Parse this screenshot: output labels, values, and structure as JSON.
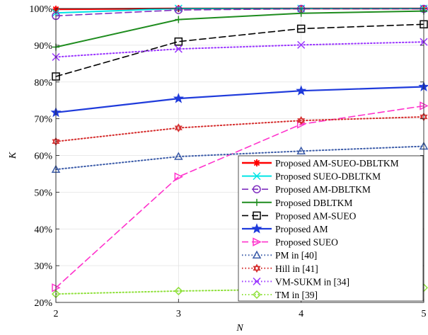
{
  "chart_data": {
    "type": "line",
    "xlabel": "N",
    "ylabel": "K",
    "x": [
      2,
      3,
      4,
      5
    ],
    "xlim": [
      2,
      5
    ],
    "ylim": [
      20,
      100
    ],
    "xticks": [
      "2",
      "3",
      "4",
      "5"
    ],
    "yticks": [
      "20%",
      "30%",
      "40%",
      "50%",
      "60%",
      "70%",
      "80%",
      "90%",
      "100%"
    ],
    "grid": true,
    "legend_position": "lower-right",
    "series": [
      {
        "name": "Proposed AM-SUEO-DBLTKM",
        "values": [
          99.8,
          100,
          100,
          100
        ],
        "color": "#ff0000",
        "line": "solid",
        "marker": "asterisk",
        "width": 2.5
      },
      {
        "name": "Proposed SUEO-DBLTKM",
        "values": [
          98.8,
          100,
          100,
          100
        ],
        "color": "#00e5e5",
        "line": "solid",
        "marker": "x",
        "width": 2
      },
      {
        "name": "Proposed AM-DBLTKM",
        "values": [
          98,
          99.6,
          99.9,
          99.9
        ],
        "color": "#7f2fbf",
        "line": "dashed",
        "marker": "circle",
        "width": 1.6
      },
      {
        "name": "Proposed DBLTKM",
        "values": [
          89.5,
          97,
          98.7,
          99.3
        ],
        "color": "#1e8c1e",
        "line": "solid",
        "marker": "plus",
        "width": 2
      },
      {
        "name": "Proposed AM-SUEO",
        "values": [
          81.5,
          91,
          94.5,
          95.7
        ],
        "color": "#000000",
        "line": "dashed",
        "marker": "square",
        "width": 1.6
      },
      {
        "name": "Proposed AM",
        "values": [
          71.7,
          75.5,
          77.6,
          78.7
        ],
        "color": "#1f3bdb",
        "line": "solid",
        "marker": "star",
        "width": 2.2
      },
      {
        "name": "Proposed SUEO",
        "values": [
          24,
          54.2,
          68.5,
          73.5
        ],
        "color": "#ff33cc",
        "line": "dashed",
        "marker": "triangle-right",
        "width": 1.6
      },
      {
        "name": "PM in [40]",
        "values": [
          56.2,
          59.7,
          61.2,
          62.5
        ],
        "color": "#3b5ba8",
        "line": "dotted",
        "marker": "triangle-up",
        "width": 2
      },
      {
        "name": "Hill in [41]",
        "values": [
          63.8,
          67.5,
          69.5,
          70.5
        ],
        "color": "#d42a2a",
        "line": "dotted",
        "marker": "hexagram",
        "width": 2
      },
      {
        "name": "VM-SUKM in [34]",
        "values": [
          86.8,
          89,
          90.1,
          90.9
        ],
        "color": "#9933ff",
        "line": "dotted",
        "marker": "x",
        "width": 2
      },
      {
        "name": "TM in [39]",
        "values": [
          22.3,
          23.1,
          23.6,
          24
        ],
        "color": "#8ee03a",
        "line": "dotted",
        "marker": "diamond",
        "width": 2
      }
    ]
  }
}
